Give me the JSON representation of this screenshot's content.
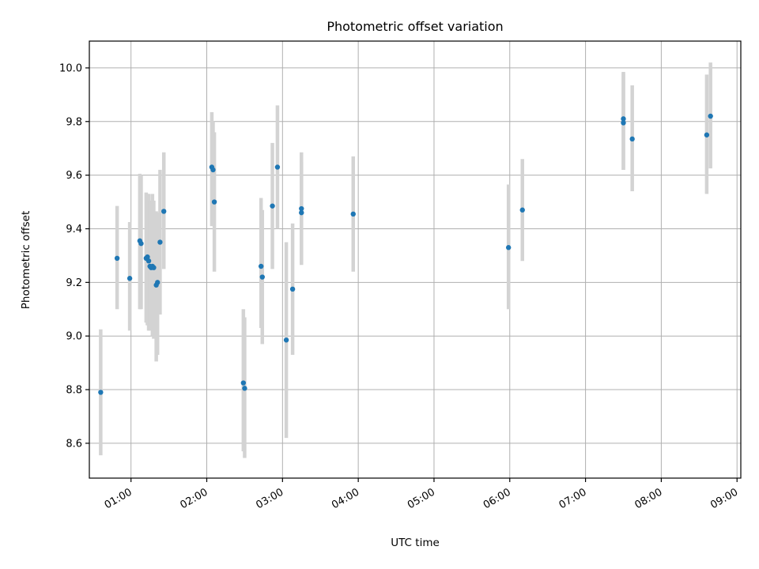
{
  "chart_data": {
    "type": "scatter",
    "title": "Photometric offset variation",
    "xlabel": "UTC time",
    "ylabel": "Photometric offset",
    "x_axis_type": "time",
    "xlim": [
      "00:27",
      "09:03"
    ],
    "ylim": [
      8.47,
      10.1
    ],
    "xticks": [
      "01:00",
      "02:00",
      "03:00",
      "04:00",
      "05:00",
      "06:00",
      "07:00",
      "08:00",
      "09:00"
    ],
    "yticks": [
      8.6,
      8.8,
      9.0,
      9.2,
      9.4,
      9.6,
      9.8,
      10.0
    ],
    "ytick_labels": [
      "8.6",
      "8.8",
      "9.0",
      "9.2",
      "9.4",
      "9.6",
      "9.8",
      "10.0"
    ],
    "grid": true,
    "legend": null,
    "marker_color": "#1f77b4",
    "errorbar_color": "#d3d3d3",
    "points": [
      {
        "x": "00:36",
        "y": 8.79,
        "ylow": 8.555,
        "yhigh": 9.025
      },
      {
        "x": "00:49",
        "y": 9.29,
        "ylow": 9.1,
        "yhigh": 9.485
      },
      {
        "x": "00:59",
        "y": 9.215,
        "ylow": 9.02,
        "yhigh": 9.425
      },
      {
        "x": "01:07",
        "y": 9.355,
        "ylow": 9.1,
        "yhigh": 9.605
      },
      {
        "x": "01:08",
        "y": 9.345,
        "ylow": 9.1,
        "yhigh": 9.6
      },
      {
        "x": "01:12",
        "y": 9.29,
        "ylow": 9.05,
        "yhigh": 9.535
      },
      {
        "x": "01:13",
        "y": 9.295,
        "ylow": 9.04,
        "yhigh": 9.53
      },
      {
        "x": "01:14",
        "y": 9.28,
        "ylow": 9.02,
        "yhigh": 9.53
      },
      {
        "x": "01:15",
        "y": 9.26,
        "ylow": 9.02,
        "yhigh": 9.505
      },
      {
        "x": "01:16",
        "y": 9.255,
        "ylow": 9.03,
        "yhigh": 9.5
      },
      {
        "x": "01:17",
        "y": 9.26,
        "ylow": 9.0,
        "yhigh": 9.53
      },
      {
        "x": "01:18",
        "y": 9.255,
        "ylow": 8.99,
        "yhigh": 9.505
      },
      {
        "x": "01:20",
        "y": 9.19,
        "ylow": 8.905,
        "yhigh": 9.465
      },
      {
        "x": "01:21",
        "y": 9.2,
        "ylow": 8.93,
        "yhigh": 9.46
      },
      {
        "x": "01:23",
        "y": 9.35,
        "ylow": 9.08,
        "yhigh": 9.62
      },
      {
        "x": "01:26",
        "y": 9.465,
        "ylow": 9.25,
        "yhigh": 9.685
      },
      {
        "x": "02:04",
        "y": 9.63,
        "ylow": 9.41,
        "yhigh": 9.835
      },
      {
        "x": "02:05",
        "y": 9.62,
        "ylow": 9.42,
        "yhigh": 9.8
      },
      {
        "x": "02:06",
        "y": 9.5,
        "ylow": 9.24,
        "yhigh": 9.76
      },
      {
        "x": "02:29",
        "y": 8.825,
        "ylow": 8.57,
        "yhigh": 9.1
      },
      {
        "x": "02:30",
        "y": 8.805,
        "ylow": 8.545,
        "yhigh": 9.07
      },
      {
        "x": "02:43",
        "y": 9.26,
        "ylow": 9.03,
        "yhigh": 9.515
      },
      {
        "x": "02:44",
        "y": 9.22,
        "ylow": 8.97,
        "yhigh": 9.47
      },
      {
        "x": "02:52",
        "y": 9.485,
        "ylow": 9.25,
        "yhigh": 9.72
      },
      {
        "x": "02:56",
        "y": 9.63,
        "ylow": 9.4,
        "yhigh": 9.86
      },
      {
        "x": "03:03",
        "y": 8.985,
        "ylow": 8.62,
        "yhigh": 9.35
      },
      {
        "x": "03:08",
        "y": 9.175,
        "ylow": 8.93,
        "yhigh": 9.42
      },
      {
        "x": "03:15",
        "y": 9.475,
        "ylow": 9.265,
        "yhigh": 9.685
      },
      {
        "x": "03:15",
        "y": 9.46,
        "ylow": 9.27,
        "yhigh": 9.65
      },
      {
        "x": "03:56",
        "y": 9.455,
        "ylow": 9.24,
        "yhigh": 9.67
      },
      {
        "x": "05:59",
        "y": 9.33,
        "ylow": 9.1,
        "yhigh": 9.565
      },
      {
        "x": "06:10",
        "y": 9.47,
        "ylow": 9.28,
        "yhigh": 9.66
      },
      {
        "x": "07:30",
        "y": 9.81,
        "ylow": 9.62,
        "yhigh": 9.985
      },
      {
        "x": "07:30",
        "y": 9.795,
        "ylow": 9.62,
        "yhigh": 9.98
      },
      {
        "x": "07:37",
        "y": 9.735,
        "ylow": 9.54,
        "yhigh": 9.935
      },
      {
        "x": "08:36",
        "y": 9.75,
        "ylow": 9.53,
        "yhigh": 9.975
      },
      {
        "x": "08:39",
        "y": 9.82,
        "ylow": 9.625,
        "yhigh": 10.02
      }
    ]
  }
}
